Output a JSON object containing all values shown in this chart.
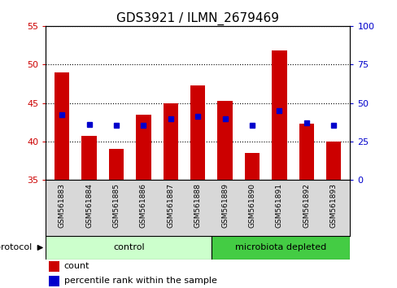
{
  "title": "GDS3921 / ILMN_2679469",
  "samples": [
    "GSM561883",
    "GSM561884",
    "GSM561885",
    "GSM561886",
    "GSM561887",
    "GSM561888",
    "GSM561889",
    "GSM561890",
    "GSM561891",
    "GSM561892",
    "GSM561893"
  ],
  "count_values": [
    49.0,
    40.7,
    39.0,
    43.5,
    45.0,
    47.3,
    45.3,
    38.5,
    51.8,
    42.3,
    40.0
  ],
  "percentile_values": [
    42.5,
    36.0,
    35.5,
    35.5,
    39.5,
    41.5,
    39.5,
    35.5,
    45.0,
    37.0,
    35.5
  ],
  "ylim_left": [
    35,
    55
  ],
  "yticks_left": [
    35,
    40,
    45,
    50,
    55
  ],
  "yticks_right": [
    0,
    25,
    50,
    75,
    100
  ],
  "ylim_right": [
    0,
    100
  ],
  "bar_color": "#cc0000",
  "dot_color": "#0000cc",
  "control_color": "#ccffcc",
  "microbiota_color": "#44cc44",
  "control_label": "control",
  "microbiota_label": "microbiota depleted",
  "protocol_label": "protocol",
  "legend_count": "count",
  "legend_pct": "percentile rank within the sample",
  "n_control": 6,
  "n_microbiota": 5,
  "left_tick_color": "#cc0000",
  "right_tick_color": "#0000cc"
}
